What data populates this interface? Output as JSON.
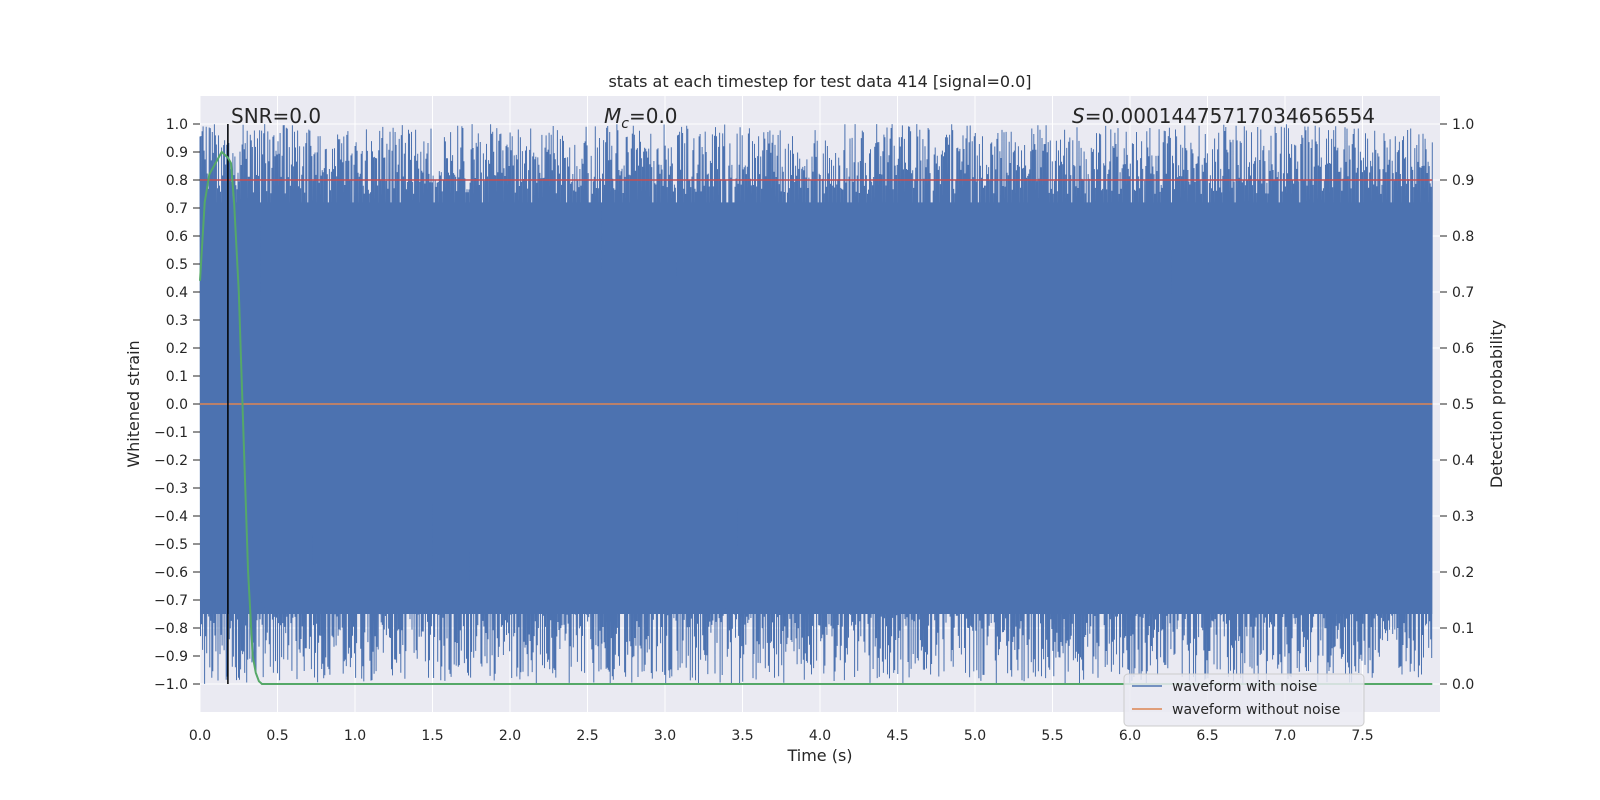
{
  "chart_data": {
    "type": "line",
    "title": "stats at each timestep for test data 414 [signal=0.0]",
    "xlabel": "Time (s)",
    "ylabel_left": "Whitened strain",
    "ylabel_right": "Detection probability",
    "xlim": [
      0.0,
      8.0
    ],
    "ylim_left": [
      -1.1,
      1.1
    ],
    "ylim_right": [
      -0.05,
      1.05
    ],
    "x_ticks": [
      "0.0",
      "0.5",
      "1.0",
      "1.5",
      "2.0",
      "2.5",
      "3.0",
      "3.5",
      "4.0",
      "4.5",
      "5.0",
      "5.5",
      "6.0",
      "6.5",
      "7.0",
      "7.5"
    ],
    "x_tick_values": [
      0.0,
      0.5,
      1.0,
      1.5,
      2.0,
      2.5,
      3.0,
      3.5,
      4.0,
      4.5,
      5.0,
      5.5,
      6.0,
      6.5,
      7.0,
      7.5
    ],
    "y_left_ticks": [
      "1.0",
      "0.9",
      "0.8",
      "0.7",
      "0.6",
      "0.5",
      "0.4",
      "0.3",
      "0.2",
      "0.1",
      "0.0",
      "−0.1",
      "−0.2",
      "−0.3",
      "−0.4",
      "−0.5",
      "−0.6",
      "−0.7",
      "−0.8",
      "−0.9",
      "−1.0"
    ],
    "y_left_tick_values": [
      1.0,
      0.9,
      0.8,
      0.7,
      0.6,
      0.5,
      0.4,
      0.3,
      0.2,
      0.1,
      0.0,
      -0.1,
      -0.2,
      -0.3,
      -0.4,
      -0.5,
      -0.6,
      -0.7,
      -0.8,
      -0.9,
      -1.0
    ],
    "y_right_ticks": [
      "1.0",
      "0.9",
      "0.8",
      "0.7",
      "0.6",
      "0.5",
      "0.4",
      "0.3",
      "0.2",
      "0.1",
      "0.0"
    ],
    "y_right_tick_values": [
      1.0,
      0.9,
      0.8,
      0.7,
      0.6,
      0.5,
      0.4,
      0.3,
      0.2,
      0.1,
      0.0
    ],
    "annotations": {
      "snr": "SNR=0.0",
      "mc": "M",
      "mc_sub": "c",
      "mc_value": "=0.0",
      "s": "S",
      "s_value": "=0.00014475717034656554"
    },
    "series": [
      {
        "name": "waveform with noise",
        "axis": "left",
        "color": "#4c72b0",
        "description_range": [
          -1.0,
          1.0
        ]
      },
      {
        "name": "waveform without noise",
        "axis": "left",
        "color": "#dd8452",
        "constant_value": 0.0
      },
      {
        "name": "detection probability",
        "axis": "right",
        "color": "#55a868",
        "x": [
          0.0,
          0.03,
          0.06,
          0.1,
          0.14,
          0.18,
          0.2,
          0.22,
          0.25,
          0.28,
          0.31,
          0.34,
          0.36,
          0.38,
          0.4,
          8.0
        ],
        "y": [
          0.72,
          0.86,
          0.91,
          0.93,
          0.95,
          0.94,
          0.93,
          0.86,
          0.7,
          0.45,
          0.2,
          0.05,
          0.02,
          0.005,
          0.0,
          0.0
        ]
      }
    ],
    "threshold": {
      "axis": "right",
      "value": 0.9,
      "color": "#c44e52"
    },
    "marker_line": {
      "x": 0.18,
      "color": "#000000"
    },
    "legend": {
      "placement": "bottom-right",
      "entries": [
        {
          "label": "waveform with noise",
          "color": "#4c72b0"
        },
        {
          "label": "waveform without noise",
          "color": "#dd8452"
        }
      ]
    },
    "colors": {
      "plot_background": "#eaeaf2",
      "grid": "#ffffff"
    }
  }
}
